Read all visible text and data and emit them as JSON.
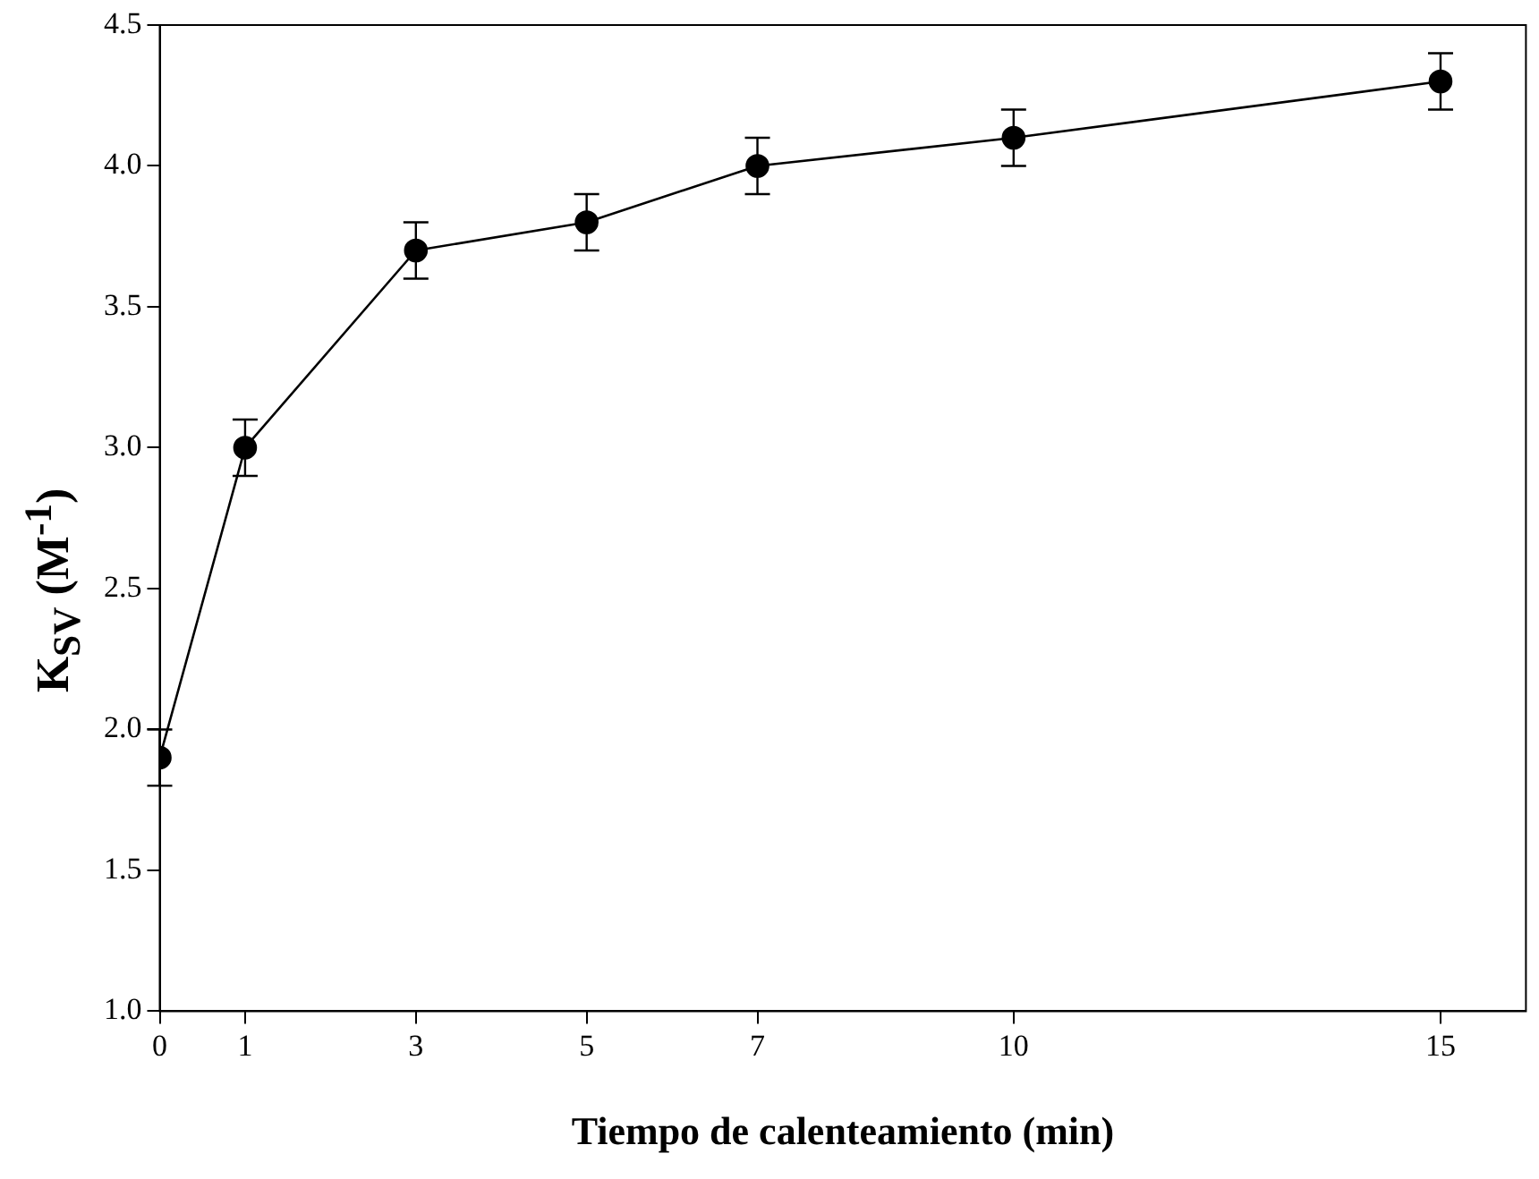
{
  "chart_data": {
    "type": "line",
    "xlabel": "Tiempo de calenteamiento (min)",
    "ylabel": "K$_{SV}$ (M$^{-1}$)",
    "x": [
      0,
      1,
      3,
      5,
      7,
      10,
      15
    ],
    "series": [
      {
        "color": "#000000",
        "values": [
          1.9,
          3.0,
          3.7,
          3.8,
          4.0,
          4.1,
          4.3
        ],
        "errors": [
          0.1,
          0.1,
          0.1,
          0.1,
          0.1,
          0.1,
          0.1
        ]
      }
    ],
    "xlim": [
      0,
      16
    ],
    "xticks": [
      0,
      1,
      3,
      5,
      7,
      10,
      15
    ],
    "ylim": [
      1,
      4.5
    ],
    "yticks": [
      {
        "value": 1,
        "label": "1.0"
      },
      {
        "value": 1.5,
        "label": "1.5"
      },
      {
        "value": 2,
        "label": "2.0"
      },
      {
        "value": 2.5,
        "label": "2.5"
      },
      {
        "value": 3,
        "label": "3.0"
      },
      {
        "value": 3.5,
        "label": "3.5"
      },
      {
        "value": 4,
        "label": "4.0"
      },
      {
        "value": 4.5,
        "label": "4.5"
      }
    ],
    "marker": "circle",
    "line_style": "solid",
    "grid": false,
    "legend": false
  }
}
